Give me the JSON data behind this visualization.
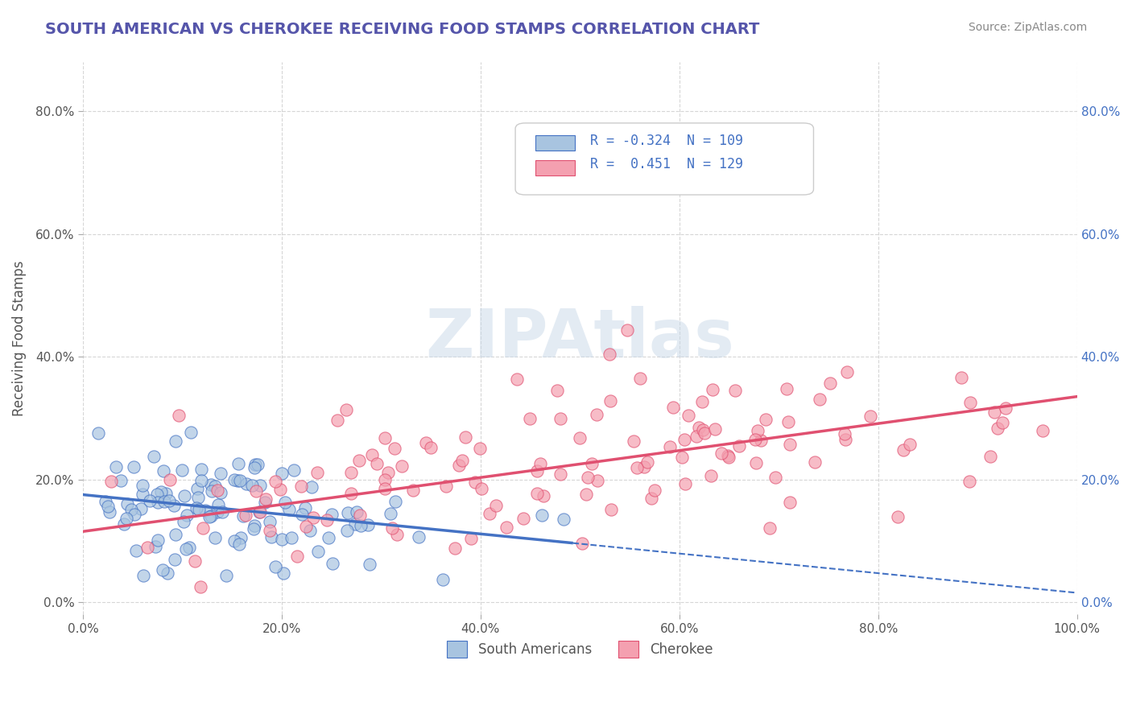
{
  "title": "SOUTH AMERICAN VS CHEROKEE RECEIVING FOOD STAMPS CORRELATION CHART",
  "source": "Source: ZipAtlas.com",
  "ylabel": "Receiving Food Stamps",
  "xlabel": "",
  "xlim": [
    0,
    1.0
  ],
  "ylim": [
    -0.02,
    0.88
  ],
  "xticks": [
    0.0,
    0.2,
    0.4,
    0.6,
    0.8,
    1.0
  ],
  "xtick_labels": [
    "0.0%",
    "20.0%",
    "40.0%",
    "60.0%",
    "80.0%",
    "100.0%"
  ],
  "ytick_labels": [
    "0.0%",
    "20.0%",
    "40.0%",
    "60.0%",
    "80.0%"
  ],
  "yticks": [
    0.0,
    0.2,
    0.4,
    0.6,
    0.8
  ],
  "blue_R": -0.324,
  "blue_N": 109,
  "pink_R": 0.451,
  "pink_N": 129,
  "blue_color": "#a8c4e0",
  "pink_color": "#f4a0b0",
  "blue_line_color": "#4472c4",
  "pink_line_color": "#e05070",
  "title_color": "#5555aa",
  "source_color": "#888888",
  "watermark": "ZIPAtlas",
  "watermark_color": "#c8d8e8",
  "background_color": "#ffffff",
  "grid_color": "#cccccc",
  "legend_R_color": "#4472c4",
  "legend_N_color": "#333333",
  "seed": 42,
  "blue_intercept": 0.175,
  "blue_slope": -0.16,
  "pink_intercept": 0.115,
  "pink_slope": 0.22
}
